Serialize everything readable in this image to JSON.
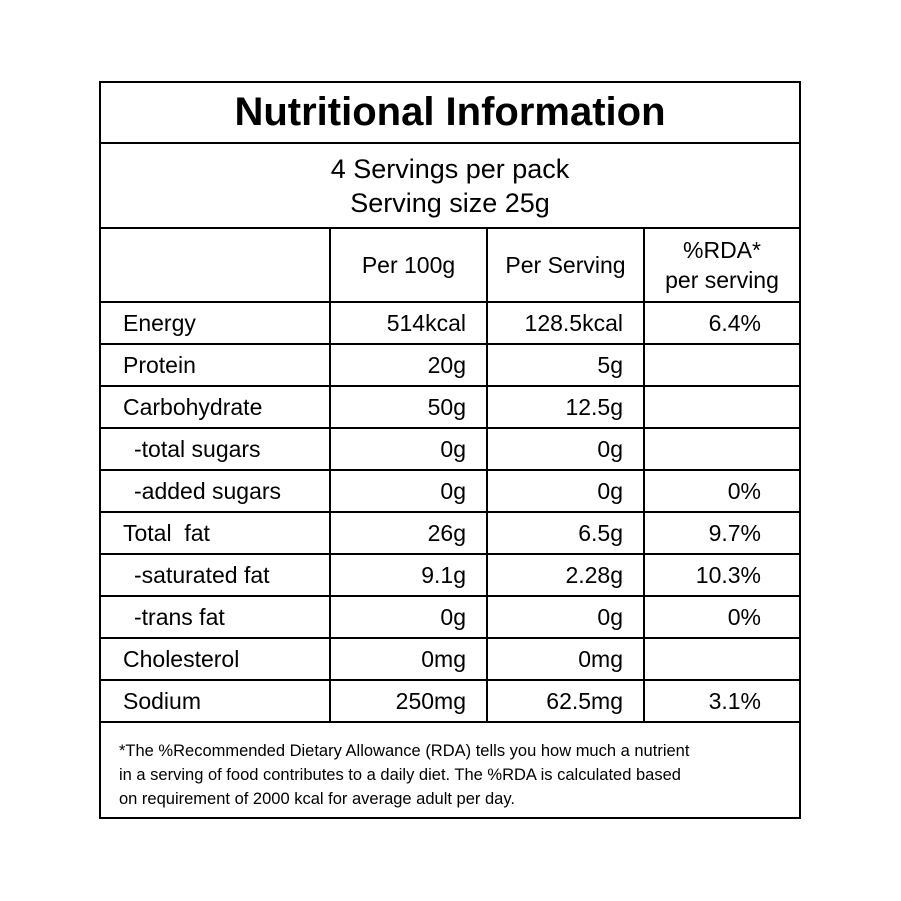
{
  "title": "Nutritional Information",
  "servings": {
    "per_pack": "4 Servings per pack",
    "size": "Serving size 25g"
  },
  "headers": {
    "per100": "Per 100g",
    "per_serving": "Per Serving",
    "rda_line1": "%RDA*",
    "rda_line2": "per serving"
  },
  "rows": [
    {
      "name": "Energy",
      "per100": "514kcal",
      "serving": "128.5kcal",
      "rda": "6.4%"
    },
    {
      "name": "Protein",
      "per100": "20g",
      "serving": "5g",
      "rda": ""
    },
    {
      "name": "Carbohydrate",
      "per100": "50g",
      "serving": "12.5g",
      "rda": ""
    },
    {
      "name": "-total sugars",
      "per100": "0g",
      "serving": "0g",
      "rda": ""
    },
    {
      "name": "-added sugars",
      "per100": "0g",
      "serving": "0g",
      "rda": "0%"
    },
    {
      "name": "Total  fat",
      "per100": "26g",
      "serving": "6.5g",
      "rda": "9.7%"
    },
    {
      "name": "-saturated fat",
      "per100": "9.1g",
      "serving": "2.28g",
      "rda": "10.3%"
    },
    {
      "name": "-trans fat",
      "per100": "0g",
      "serving": "0g",
      "rda": "0%"
    },
    {
      "name": "Cholesterol",
      "per100": "0mg",
      "serving": "0mg",
      "rda": ""
    },
    {
      "name": "Sodium",
      "per100": "250mg",
      "serving": "62.5mg",
      "rda": "3.1%"
    }
  ],
  "footnote": {
    "line1": "*The %Recommended Dietary Allowance (RDA) tells you how much a nutrient",
    "line2": "in a serving of food contributes to a daily diet. The %RDA is calculated based",
    "line3": "on requirement of 2000 kcal for average adult per day."
  }
}
